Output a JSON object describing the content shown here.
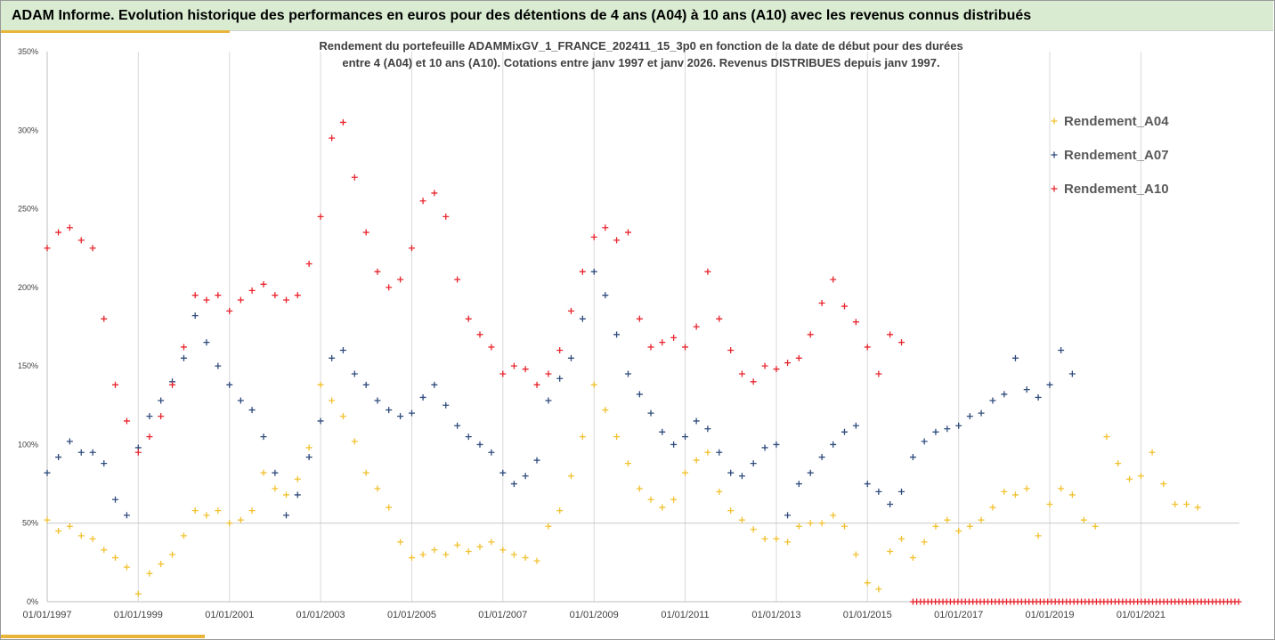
{
  "header": {
    "title": "ADAM Informe. Evolution historique des performances en euros pour des détentions de 4 ans (A04) à 10 ans (A10) avec les revenus connus distribués"
  },
  "chart_data": {
    "type": "scatter",
    "subtitle_line1": "Rendement du portefeuille ADAMMixGV_1_FRANCE_202411_15_3p0 en fonction de la date de début pour des durées",
    "subtitle_line2": "entre 4 (A04) et 10 ans (A10). Cotations entre janv 1997 et janv 2026. Revenus DISTRIBUES depuis janv 1997.",
    "xlabel": "",
    "ylabel": "",
    "xlim": [
      "1997-01-01",
      "2023-03-01"
    ],
    "ylim": [
      0,
      3.5
    ],
    "y_ticks": [
      "0%",
      "50%",
      "100%",
      "150%",
      "200%",
      "250%",
      "300%",
      "350%"
    ],
    "x_ticks": [
      "01/01/1997",
      "01/01/1999",
      "01/01/2001",
      "01/01/2003",
      "01/01/2005",
      "01/01/2007",
      "01/01/2009",
      "01/01/2011",
      "01/01/2013",
      "01/01/2015",
      "01/01/2017",
      "01/01/2019",
      "01/01/2021"
    ],
    "grid": "vertical",
    "legend_position": "right",
    "marker": "+",
    "series": [
      {
        "name": "Rendement_A04",
        "color": "#f2c12e",
        "points": [
          [
            "1997-01-01",
            0.52
          ],
          [
            "1997-04-01",
            0.45
          ],
          [
            "1997-07-01",
            0.48
          ],
          [
            "1997-10-01",
            0.42
          ],
          [
            "1998-01-01",
            0.4
          ],
          [
            "1998-04-01",
            0.33
          ],
          [
            "1998-07-01",
            0.28
          ],
          [
            "1998-10-01",
            0.22
          ],
          [
            "1999-01-01",
            0.05
          ],
          [
            "1999-04-01",
            0.18
          ],
          [
            "1999-07-01",
            0.24
          ],
          [
            "1999-10-01",
            0.3
          ],
          [
            "2000-01-01",
            0.42
          ],
          [
            "2000-04-01",
            0.58
          ],
          [
            "2000-07-01",
            0.55
          ],
          [
            "2000-10-01",
            0.58
          ],
          [
            "2001-01-01",
            0.5
          ],
          [
            "2001-04-01",
            0.52
          ],
          [
            "2001-07-01",
            0.58
          ],
          [
            "2001-10-01",
            0.82
          ],
          [
            "2002-01-01",
            0.72
          ],
          [
            "2002-04-01",
            0.68
          ],
          [
            "2002-07-01",
            0.78
          ],
          [
            "2002-10-01",
            0.98
          ],
          [
            "2003-01-01",
            1.38
          ],
          [
            "2003-04-01",
            1.28
          ],
          [
            "2003-07-01",
            1.18
          ],
          [
            "2003-10-01",
            1.02
          ],
          [
            "2004-01-01",
            0.82
          ],
          [
            "2004-04-01",
            0.72
          ],
          [
            "2004-07-01",
            0.6
          ],
          [
            "2004-10-01",
            0.38
          ],
          [
            "2005-01-01",
            0.28
          ],
          [
            "2005-04-01",
            0.3
          ],
          [
            "2005-07-01",
            0.33
          ],
          [
            "2005-10-01",
            0.3
          ],
          [
            "2006-01-01",
            0.36
          ],
          [
            "2006-04-01",
            0.32
          ],
          [
            "2006-07-01",
            0.35
          ],
          [
            "2006-10-01",
            0.38
          ],
          [
            "2007-01-01",
            0.33
          ],
          [
            "2007-04-01",
            0.3
          ],
          [
            "2007-07-01",
            0.28
          ],
          [
            "2007-10-01",
            0.26
          ],
          [
            "2008-01-01",
            0.48
          ],
          [
            "2008-04-01",
            0.58
          ],
          [
            "2008-07-01",
            0.8
          ],
          [
            "2008-10-01",
            1.05
          ],
          [
            "2009-01-01",
            1.38
          ],
          [
            "2009-04-01",
            1.22
          ],
          [
            "2009-07-01",
            1.05
          ],
          [
            "2009-10-01",
            0.88
          ],
          [
            "2010-01-01",
            0.72
          ],
          [
            "2010-04-01",
            0.65
          ],
          [
            "2010-07-01",
            0.6
          ],
          [
            "2010-10-01",
            0.65
          ],
          [
            "2011-01-01",
            0.82
          ],
          [
            "2011-04-01",
            0.9
          ],
          [
            "2011-07-01",
            0.95
          ],
          [
            "2011-10-01",
            0.7
          ],
          [
            "2012-01-01",
            0.58
          ],
          [
            "2012-04-01",
            0.52
          ],
          [
            "2012-07-01",
            0.46
          ],
          [
            "2012-10-01",
            0.4
          ],
          [
            "2013-01-01",
            0.4
          ],
          [
            "2013-04-01",
            0.38
          ],
          [
            "2013-07-01",
            0.48
          ],
          [
            "2013-10-01",
            0.5
          ],
          [
            "2014-01-01",
            0.5
          ],
          [
            "2014-04-01",
            0.55
          ],
          [
            "2014-07-01",
            0.48
          ],
          [
            "2014-10-01",
            0.3
          ],
          [
            "2015-01-01",
            0.12
          ],
          [
            "2015-04-01",
            0.08
          ],
          [
            "2015-07-01",
            0.32
          ],
          [
            "2015-10-01",
            0.4
          ],
          [
            "2016-01-01",
            0.28
          ],
          [
            "2016-04-01",
            0.38
          ],
          [
            "2016-07-01",
            0.48
          ],
          [
            "2016-10-01",
            0.52
          ],
          [
            "2017-01-01",
            0.45
          ],
          [
            "2017-04-01",
            0.48
          ],
          [
            "2017-07-01",
            0.52
          ],
          [
            "2017-10-01",
            0.6
          ],
          [
            "2018-01-01",
            0.7
          ],
          [
            "2018-04-01",
            0.68
          ],
          [
            "2018-07-01",
            0.72
          ],
          [
            "2018-10-01",
            0.42
          ],
          [
            "2019-01-01",
            0.62
          ],
          [
            "2019-04-01",
            0.72
          ],
          [
            "2019-07-01",
            0.68
          ],
          [
            "2019-10-01",
            0.52
          ],
          [
            "2020-01-01",
            0.48
          ],
          [
            "2020-04-01",
            1.05
          ],
          [
            "2020-07-01",
            0.88
          ],
          [
            "2020-10-01",
            0.78
          ],
          [
            "2021-01-01",
            0.8
          ],
          [
            "2021-04-01",
            0.95
          ],
          [
            "2021-07-01",
            0.75
          ],
          [
            "2021-10-01",
            0.62
          ],
          [
            "2022-01-01",
            0.62
          ],
          [
            "2022-04-01",
            0.6
          ]
        ]
      },
      {
        "name": "Rendement_A07",
        "color": "#2f4b7c",
        "points": [
          [
            "1997-01-01",
            0.82
          ],
          [
            "1997-04-01",
            0.92
          ],
          [
            "1997-07-01",
            1.02
          ],
          [
            "1997-10-01",
            0.95
          ],
          [
            "1998-01-01",
            0.95
          ],
          [
            "1998-04-01",
            0.88
          ],
          [
            "1998-07-01",
            0.65
          ],
          [
            "1998-10-01",
            0.55
          ],
          [
            "1999-01-01",
            0.98
          ],
          [
            "1999-04-01",
            1.18
          ],
          [
            "1999-07-01",
            1.28
          ],
          [
            "1999-10-01",
            1.4
          ],
          [
            "2000-01-01",
            1.55
          ],
          [
            "2000-04-01",
            1.82
          ],
          [
            "2000-07-01",
            1.65
          ],
          [
            "2000-10-01",
            1.5
          ],
          [
            "2001-01-01",
            1.38
          ],
          [
            "2001-04-01",
            1.28
          ],
          [
            "2001-07-01",
            1.22
          ],
          [
            "2001-10-01",
            1.05
          ],
          [
            "2002-01-01",
            0.82
          ],
          [
            "2002-04-01",
            0.55
          ],
          [
            "2002-07-01",
            0.68
          ],
          [
            "2002-10-01",
            0.92
          ],
          [
            "2003-01-01",
            1.15
          ],
          [
            "2003-04-01",
            1.55
          ],
          [
            "2003-07-01",
            1.6
          ],
          [
            "2003-10-01",
            1.45
          ],
          [
            "2004-01-01",
            1.38
          ],
          [
            "2004-04-01",
            1.28
          ],
          [
            "2004-07-01",
            1.22
          ],
          [
            "2004-10-01",
            1.18
          ],
          [
            "2005-01-01",
            1.2
          ],
          [
            "2005-04-01",
            1.3
          ],
          [
            "2005-07-01",
            1.38
          ],
          [
            "2005-10-01",
            1.25
          ],
          [
            "2006-01-01",
            1.12
          ],
          [
            "2006-04-01",
            1.05
          ],
          [
            "2006-07-01",
            1.0
          ],
          [
            "2006-10-01",
            0.95
          ],
          [
            "2007-01-01",
            0.82
          ],
          [
            "2007-04-01",
            0.75
          ],
          [
            "2007-07-01",
            0.8
          ],
          [
            "2007-10-01",
            0.9
          ],
          [
            "2008-01-01",
            1.28
          ],
          [
            "2008-04-01",
            1.42
          ],
          [
            "2008-07-01",
            1.55
          ],
          [
            "2008-10-01",
            1.8
          ],
          [
            "2009-01-01",
            2.1
          ],
          [
            "2009-04-01",
            1.95
          ],
          [
            "2009-07-01",
            1.7
          ],
          [
            "2009-10-01",
            1.45
          ],
          [
            "2010-01-01",
            1.32
          ],
          [
            "2010-04-01",
            1.2
          ],
          [
            "2010-07-01",
            1.08
          ],
          [
            "2010-10-01",
            1.0
          ],
          [
            "2011-01-01",
            1.05
          ],
          [
            "2011-04-01",
            1.15
          ],
          [
            "2011-07-01",
            1.1
          ],
          [
            "2011-10-01",
            0.95
          ],
          [
            "2012-01-01",
            0.82
          ],
          [
            "2012-04-01",
            0.8
          ],
          [
            "2012-07-01",
            0.88
          ],
          [
            "2012-10-01",
            0.98
          ],
          [
            "2013-01-01",
            1.0
          ],
          [
            "2013-04-01",
            0.55
          ],
          [
            "2013-07-01",
            0.75
          ],
          [
            "2013-10-01",
            0.82
          ],
          [
            "2014-01-01",
            0.92
          ],
          [
            "2014-04-01",
            1.0
          ],
          [
            "2014-07-01",
            1.08
          ],
          [
            "2014-10-01",
            1.12
          ],
          [
            "2015-01-01",
            0.75
          ],
          [
            "2015-04-01",
            0.7
          ],
          [
            "2015-07-01",
            0.62
          ],
          [
            "2015-10-01",
            0.7
          ],
          [
            "2016-01-01",
            0.92
          ],
          [
            "2016-04-01",
            1.02
          ],
          [
            "2016-07-01",
            1.08
          ],
          [
            "2016-10-01",
            1.1
          ],
          [
            "2017-01-01",
            1.12
          ],
          [
            "2017-04-01",
            1.18
          ],
          [
            "2017-07-01",
            1.2
          ],
          [
            "2017-10-01",
            1.28
          ],
          [
            "2018-01-01",
            1.32
          ],
          [
            "2018-04-01",
            1.55
          ],
          [
            "2018-07-01",
            1.35
          ],
          [
            "2018-10-01",
            1.3
          ],
          [
            "2019-01-01",
            1.38
          ],
          [
            "2019-04-01",
            1.6
          ],
          [
            "2019-07-01",
            1.45
          ]
        ]
      },
      {
        "name": "Rendement_A10",
        "color": "#e8242c",
        "points": [
          [
            "1997-01-01",
            2.25
          ],
          [
            "1997-04-01",
            2.35
          ],
          [
            "1997-07-01",
            2.38
          ],
          [
            "1997-10-01",
            2.3
          ],
          [
            "1998-01-01",
            2.25
          ],
          [
            "1998-04-01",
            1.8
          ],
          [
            "1998-07-01",
            1.38
          ],
          [
            "1998-10-01",
            1.15
          ],
          [
            "1999-01-01",
            0.95
          ],
          [
            "1999-04-01",
            1.05
          ],
          [
            "1999-07-01",
            1.18
          ],
          [
            "1999-10-01",
            1.38
          ],
          [
            "2000-01-01",
            1.62
          ],
          [
            "2000-04-01",
            1.95
          ],
          [
            "2000-07-01",
            1.92
          ],
          [
            "2000-10-01",
            1.95
          ],
          [
            "2001-01-01",
            1.85
          ],
          [
            "2001-04-01",
            1.92
          ],
          [
            "2001-07-01",
            1.98
          ],
          [
            "2001-10-01",
            2.02
          ],
          [
            "2002-01-01",
            1.95
          ],
          [
            "2002-04-01",
            1.92
          ],
          [
            "2002-07-01",
            1.95
          ],
          [
            "2002-10-01",
            2.15
          ],
          [
            "2003-01-01",
            2.45
          ],
          [
            "2003-04-01",
            2.95
          ],
          [
            "2003-07-01",
            3.05
          ],
          [
            "2003-10-01",
            2.7
          ],
          [
            "2004-01-01",
            2.35
          ],
          [
            "2004-04-01",
            2.1
          ],
          [
            "2004-07-01",
            2.0
          ],
          [
            "2004-10-01",
            2.05
          ],
          [
            "2005-01-01",
            2.25
          ],
          [
            "2005-04-01",
            2.55
          ],
          [
            "2005-07-01",
            2.6
          ],
          [
            "2005-10-01",
            2.45
          ],
          [
            "2006-01-01",
            2.05
          ],
          [
            "2006-04-01",
            1.8
          ],
          [
            "2006-07-01",
            1.7
          ],
          [
            "2006-10-01",
            1.62
          ],
          [
            "2007-01-01",
            1.45
          ],
          [
            "2007-04-01",
            1.5
          ],
          [
            "2007-07-01",
            1.48
          ],
          [
            "2007-10-01",
            1.38
          ],
          [
            "2008-01-01",
            1.45
          ],
          [
            "2008-04-01",
            1.6
          ],
          [
            "2008-07-01",
            1.85
          ],
          [
            "2008-10-01",
            2.1
          ],
          [
            "2009-01-01",
            2.32
          ],
          [
            "2009-04-01",
            2.38
          ],
          [
            "2009-07-01",
            2.3
          ],
          [
            "2009-10-01",
            2.35
          ],
          [
            "2010-01-01",
            1.8
          ],
          [
            "2010-04-01",
            1.62
          ],
          [
            "2010-07-01",
            1.65
          ],
          [
            "2010-10-01",
            1.68
          ],
          [
            "2011-01-01",
            1.62
          ],
          [
            "2011-04-01",
            1.75
          ],
          [
            "2011-07-01",
            2.1
          ],
          [
            "2011-10-01",
            1.8
          ],
          [
            "2012-01-01",
            1.6
          ],
          [
            "2012-04-01",
            1.45
          ],
          [
            "2012-07-01",
            1.4
          ],
          [
            "2012-10-01",
            1.5
          ],
          [
            "2013-01-01",
            1.48
          ],
          [
            "2013-04-01",
            1.52
          ],
          [
            "2013-07-01",
            1.55
          ],
          [
            "2013-10-01",
            1.7
          ],
          [
            "2014-01-01",
            1.9
          ],
          [
            "2014-04-01",
            2.05
          ],
          [
            "2014-07-01",
            1.88
          ],
          [
            "2014-10-01",
            1.78
          ],
          [
            "2015-01-01",
            1.62
          ],
          [
            "2015-04-01",
            1.45
          ],
          [
            "2015-07-01",
            1.7
          ],
          [
            "2015-10-01",
            1.65
          ]
        ]
      }
    ],
    "zero_run": {
      "series": "Rendement_A10",
      "color": "#e8242c",
      "from": "2016-01-01",
      "to": "2023-03-01",
      "value": 0
    }
  }
}
